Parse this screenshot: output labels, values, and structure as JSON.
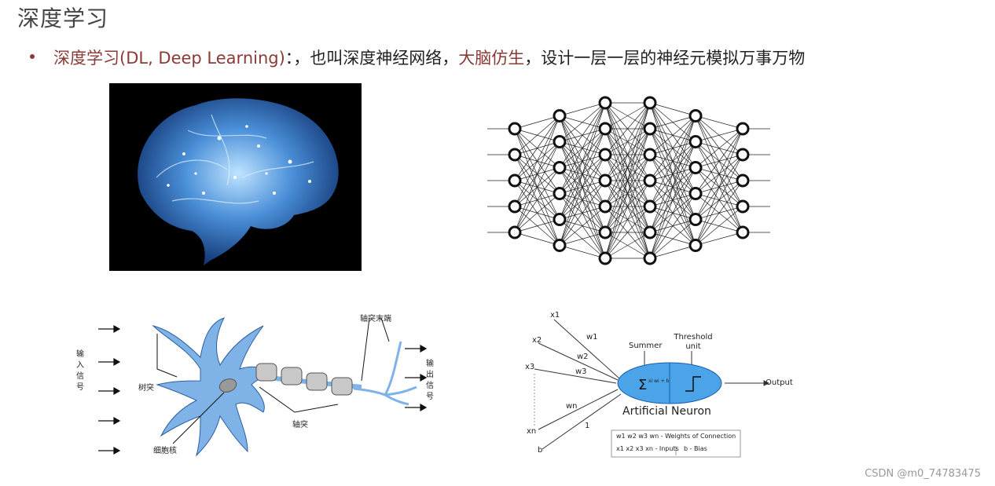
{
  "slide": {
    "title": "深度学习",
    "bullet": {
      "term": "深度学习(DL, Deep Learning)",
      "sep": "：，",
      "middle": "也叫深度神经网络，",
      "highlight": "大脑仿生",
      "rest": "，设计一层一层的神经元模拟万事万物"
    }
  },
  "neuron_diagram": {
    "input_label": "输入信号",
    "output_label": "输出信号",
    "dendrite_label": "树突",
    "nucleus_label": "细胞核",
    "axon_label": "轴突",
    "axon_terminal_label": "轴突末端"
  },
  "artificial_neuron": {
    "inputs": [
      "x1",
      "x2",
      "x3",
      "xn",
      "b"
    ],
    "weights": [
      "w1",
      "w2",
      "w3",
      "wn",
      "1"
    ],
    "summer_label": "Summer",
    "threshold_label": "Threshold unit",
    "output_label": "Output",
    "title": "Artificial Neuron",
    "legend_weights": "w1 w2 w3 wn - Weights of Connection",
    "legend_inputs": "x1 x2 x3 xn - Inputs",
    "legend_bias": "b - Bias",
    "sum_formula": "xi wi + b"
  },
  "watermark": "CSDN @m0_74783475",
  "colors": {
    "accent": "#8a3b36",
    "neuron_blue": "#6fa3d9",
    "node_fill": "#4ba3e8"
  },
  "icons": {
    "bullet": "bullet-dot-icon"
  }
}
